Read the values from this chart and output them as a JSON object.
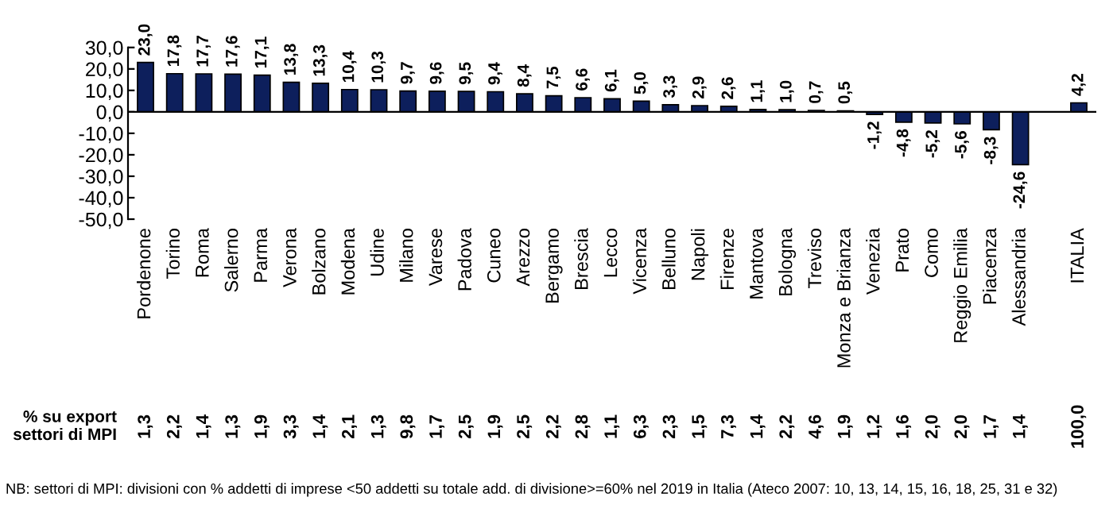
{
  "chart_data": {
    "type": "bar",
    "categories": [
      "Pordenone",
      "Torino",
      "Roma",
      "Salerno",
      "Parma",
      "Verona",
      "Bolzano",
      "Modena",
      "Udine",
      "Milano",
      "Varese",
      "Padova",
      "Cuneo",
      "Arezzo",
      "Bergamo",
      "Brescia",
      "Lecco",
      "Vicenza",
      "Belluno",
      "Napoli",
      "Firenze",
      "Mantova",
      "Bologna",
      "Treviso",
      "Monza e Brianza",
      "Venezia",
      "Prato",
      "Como",
      "Reggio Emilia",
      "Piacenza",
      "Alessandria",
      null,
      "ITALIA"
    ],
    "series": [
      {
        "color": "#0d1f5c",
        "values": [
          23.0,
          17.8,
          17.7,
          17.6,
          17.1,
          13.8,
          13.3,
          10.4,
          10.3,
          9.7,
          9.6,
          9.5,
          9.4,
          8.4,
          7.5,
          6.6,
          6.1,
          5.0,
          3.3,
          2.9,
          2.6,
          1.1,
          1.0,
          0.7,
          0.5,
          -1.2,
          -4.8,
          -5.2,
          -5.6,
          -8.3,
          -24.6,
          null,
          4.2
        ],
        "value_labels": [
          "23,0",
          "17,8",
          "17,7",
          "17,6",
          "17,1",
          "13,8",
          "13,3",
          "10,4",
          "10,3",
          "9,7",
          "9,6",
          "9,5",
          "9,4",
          "8,4",
          "7,5",
          "6,6",
          "6,1",
          "5,0",
          "3,3",
          "2,9",
          "2,6",
          "1,1",
          "1,0",
          "0,7",
          "0,5",
          "-1,2",
          "-4,8",
          "-5,2",
          "-5,6",
          "-8,3",
          "-24,6",
          null,
          "4,2"
        ]
      }
    ],
    "ylim": [
      -50,
      30
    ],
    "yticks": [
      {
        "value": -50,
        "label": "-50,0"
      },
      {
        "value": -40,
        "label": "-40,0"
      },
      {
        "value": -30,
        "label": "-30,0"
      },
      {
        "value": -20,
        "label": "-20,0"
      },
      {
        "value": -10,
        "label": "-10,0"
      },
      {
        "value": 0,
        "label": "0,0"
      },
      {
        "value": 10,
        "label": "10,0"
      },
      {
        "value": 20,
        "label": "20,0"
      },
      {
        "value": 30,
        "label": "30,0"
      }
    ],
    "annotations": [
      "% su export\nsettori di MPI",
      "1,3",
      "2,2",
      "1,4",
      "1,3",
      "1,9",
      "3,3",
      "1,4",
      "2,1",
      "1,3",
      "9,8",
      "1,7",
      "2,5",
      "1,9",
      "2,5",
      "2,2",
      "2,8",
      "1,1",
      "6,3",
      "2,3",
      "1,5",
      "7,3",
      "1,4",
      "2,2",
      "4,6",
      "1,9",
      "1,2",
      "1,6",
      "2,0",
      "2,0",
      "1,7",
      "1,4",
      "100,0",
      "NB: settori di MPI: divisioni con % addetti di imprese <50 addetti su totale add. di divisione>=60% nel 2019 in Italia (Ateco 2007: 10, 13, 14, 15, 16, 18, 25, 31 e 32)"
    ]
  }
}
